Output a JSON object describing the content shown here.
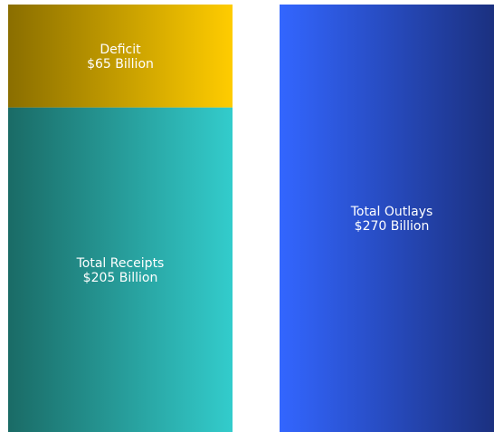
{
  "chart_data": {
    "type": "bar",
    "stacked": true,
    "unit": "Billion",
    "bars": [
      {
        "segments": [
          {
            "label_line1": "Total Receipts",
            "label_line2": "$205 Billion",
            "value": 205,
            "colors": [
              "#1a6b66",
              "#33cccc"
            ]
          },
          {
            "label_line1": "Deficit",
            "label_line2": "$65 Billion",
            "value": 65,
            "colors": [
              "#8a6e00",
              "#ffcc00"
            ]
          }
        ]
      },
      {
        "segments": [
          {
            "label_line1": "Total Outlays",
            "label_line2": "$270 Billion",
            "value": 270,
            "colors": [
              "#3366ff",
              "#1a2e7a"
            ]
          }
        ]
      }
    ],
    "ylim": [
      0,
      270
    ],
    "grid": false,
    "legend": "none"
  }
}
